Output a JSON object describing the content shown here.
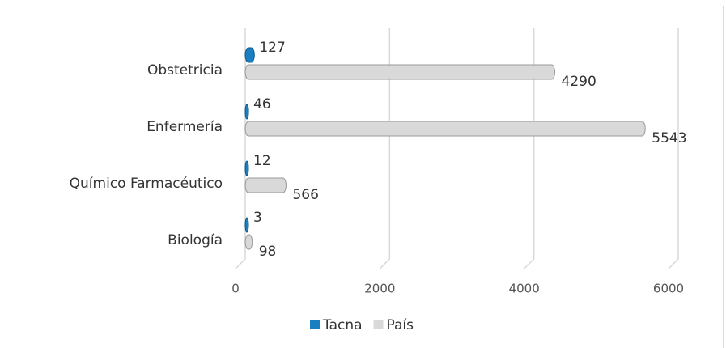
{
  "chart_data": {
    "type": "bar",
    "orientation": "horizontal",
    "categories": [
      "Obstetricia",
      "Enfermería",
      "Químico Farmacéutico",
      "Biología"
    ],
    "series": [
      {
        "name": "Tacna",
        "color": "#1a7fc1",
        "values": [
          127,
          46,
          12,
          3
        ]
      },
      {
        "name": "País",
        "color": "#d9d9d9",
        "values": [
          4290,
          5543,
          566,
          98
        ]
      }
    ],
    "xlim": [
      0,
      6000
    ],
    "xticks": [
      0,
      2000,
      4000,
      6000
    ],
    "grid": true,
    "legend": "bottom"
  }
}
